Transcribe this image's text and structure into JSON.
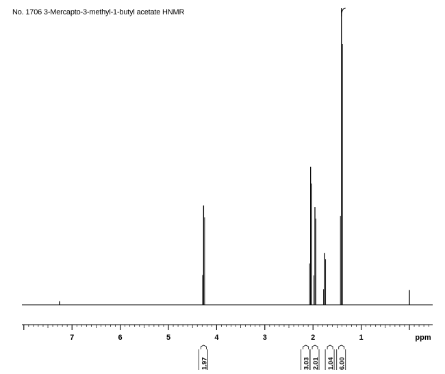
{
  "title": "No. 1706 3-Mercapto-3-methyl-1-butyl acetate HNMR",
  "chart_data": {
    "type": "line",
    "title": "No. 1706 3-Mercapto-3-methyl-1-butyl acetate HNMR",
    "xlabel": "ppm",
    "ylabel": "",
    "xlim": [
      8.0,
      -0.5
    ],
    "x_reversed": true,
    "x_ticks": [
      7,
      6,
      5,
      4,
      3,
      2,
      1
    ],
    "x_tick_labels": [
      "7",
      "6",
      "5",
      "4",
      "3",
      "2",
      "1"
    ],
    "grid": false,
    "peaks": [
      {
        "shift": 7.26,
        "height": 0.012
      },
      {
        "shift": 4.27,
        "height": 0.335
      },
      {
        "shift": 2.05,
        "height": 0.465
      },
      {
        "shift": 1.96,
        "height": 0.33
      },
      {
        "shift": 1.76,
        "height": 0.175
      },
      {
        "shift": 1.41,
        "height": 1.0
      },
      {
        "shift": 0.0,
        "height": 0.05
      }
    ],
    "integrals": [
      {
        "value": "1.97",
        "shift": 4.27
      },
      {
        "value": "3.03",
        "shift": 2.05
      },
      {
        "value": "2.01",
        "shift": 1.96
      },
      {
        "value": "1.04",
        "shift": 1.76
      },
      {
        "value": "6.00",
        "shift": 1.41
      }
    ]
  }
}
